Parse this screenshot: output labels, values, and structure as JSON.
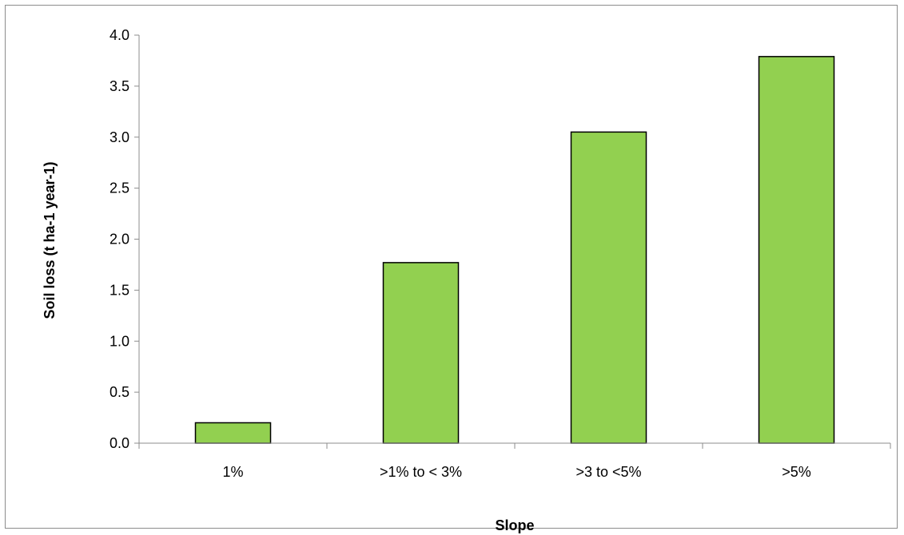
{
  "chart_data": {
    "type": "bar",
    "title": "",
    "xlabel": "Slope",
    "ylabel": "Soil loss (t ha-1 year-1)",
    "categories": [
      "1%",
      ">1% to < 3%",
      ">3 to <5%",
      ">5%"
    ],
    "values": [
      0.2,
      1.77,
      3.05,
      3.79
    ],
    "ylim": [
      0,
      4.0
    ],
    "yticks": [
      "0.0",
      "0.5",
      "1.0",
      "1.5",
      "2.0",
      "2.5",
      "3.0",
      "3.5",
      "4.0"
    ],
    "grid": false,
    "legend": "none",
    "bar_color": "#92d050",
    "bar_edge_color": "#000000"
  }
}
